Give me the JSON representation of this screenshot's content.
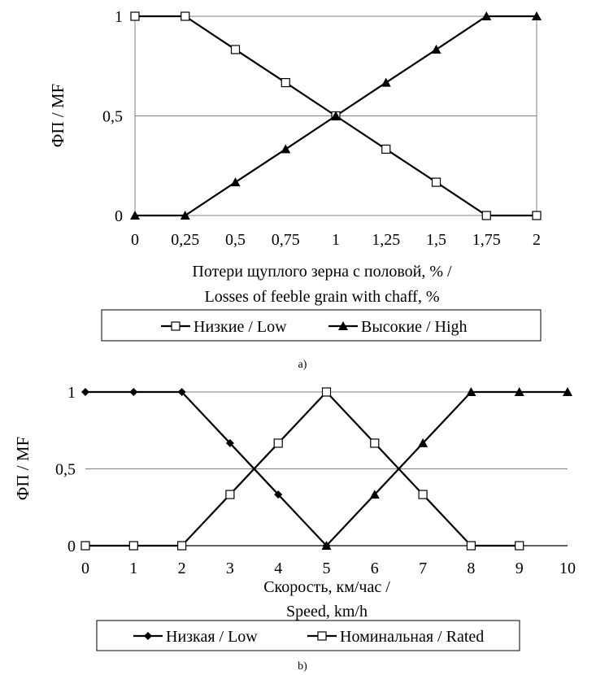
{
  "chart_data": [
    {
      "type": "line",
      "panel_label": "a)",
      "xlabel_line1": "Потери щуплого зерна с половой, % /",
      "xlabel_line2": "Losses of feeble grain with chaff, %",
      "ylabel": "ФП / MF",
      "xticks": [
        "0",
        "0,25",
        "0,5",
        "0,75",
        "1",
        "1,25",
        "1,5",
        "1,75",
        "2"
      ],
      "yticks": [
        "0",
        "0,5",
        "1"
      ],
      "xlim": [
        0,
        2
      ],
      "ylim": [
        0,
        1
      ],
      "x": [
        0,
        0.25,
        0.5,
        0.75,
        1,
        1.25,
        1.5,
        1.75,
        2
      ],
      "grid": "horizontal",
      "legend_position": "bottom",
      "series": [
        {
          "name": "Низкие / Low",
          "marker": "open-square",
          "values": [
            1,
            1,
            0.833,
            0.667,
            0.5,
            0.333,
            0.167,
            0,
            0
          ]
        },
        {
          "name": "Высокие / High",
          "marker": "filled-triangle",
          "values": [
            0,
            0,
            0.167,
            0.333,
            0.5,
            0.667,
            0.833,
            1,
            1
          ]
        }
      ]
    },
    {
      "type": "line",
      "panel_label": "b)",
      "xlabel_line1": "Скорость, км/час /",
      "xlabel_line2": "Speed, km/h",
      "ylabel": "ФП / MF",
      "xticks": [
        "0",
        "1",
        "2",
        "3",
        "4",
        "5",
        "6",
        "7",
        "8",
        "9",
        "10"
      ],
      "yticks": [
        "0",
        "0,5",
        "1"
      ],
      "xlim": [
        0,
        10
      ],
      "ylim": [
        0,
        1
      ],
      "grid": "horizontal",
      "legend_position": "bottom",
      "series": [
        {
          "name": "Низкая / Low",
          "marker": "filled-diamond",
          "x": [
            0,
            1,
            2,
            3,
            4,
            5
          ],
          "values": [
            1,
            1,
            1,
            0.667,
            0.333,
            0
          ]
        },
        {
          "name": "Номинальная / Rated",
          "marker": "open-square",
          "x": [
            0,
            1,
            2,
            3,
            4,
            5,
            6,
            7,
            8,
            9
          ],
          "values": [
            0,
            0,
            0,
            0.333,
            0.667,
            1,
            0.667,
            0.333,
            0,
            0
          ]
        },
        {
          "name": "",
          "marker": "filled-triangle",
          "x": [
            5,
            6,
            7,
            8,
            9,
            10
          ],
          "values": [
            0,
            0.333,
            0.667,
            1,
            1,
            1
          ]
        }
      ]
    }
  ]
}
